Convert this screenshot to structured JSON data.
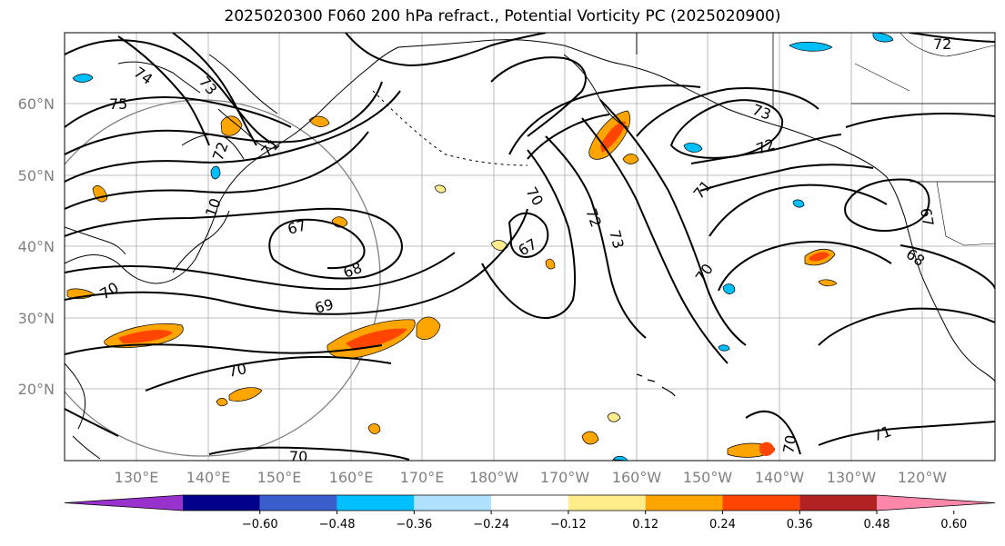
{
  "title": "2025020300 F060 200 hPa refract., Potential Vorticity PC (2025020900)",
  "map": {
    "lat_labels": [
      "60°N",
      "50°N",
      "40°N",
      "30°N",
      "20°N"
    ],
    "lon_labels": [
      "130°E",
      "140°E",
      "150°E",
      "160°E",
      "170°E",
      "180°W",
      "170°W",
      "160°W",
      "150°W",
      "140°W",
      "130°W",
      "120°W"
    ],
    "contour_labels": [
      "74",
      "73",
      "75",
      "72",
      "71",
      "10",
      "67",
      "68",
      "69",
      "70",
      "70",
      "70",
      "67",
      "70",
      "72",
      "73",
      "73",
      "72",
      "71",
      "70",
      "68",
      "67",
      "72",
      "71",
      "70"
    ]
  },
  "colorbar": {
    "ticks": [
      "−0.60",
      "−0.48",
      "−0.36",
      "−0.24",
      "−0.12",
      "0.12",
      "0.24",
      "0.36",
      "0.48",
      "0.60"
    ],
    "colors": [
      "#9932CC",
      "#00008B",
      "#3A5FCD",
      "#00BFFF",
      "#B0E2FF",
      "#FFFFFF",
      "#FFEC8B",
      "#FFA500",
      "#FF4500",
      "#B22222",
      "#FF88AA"
    ]
  }
}
